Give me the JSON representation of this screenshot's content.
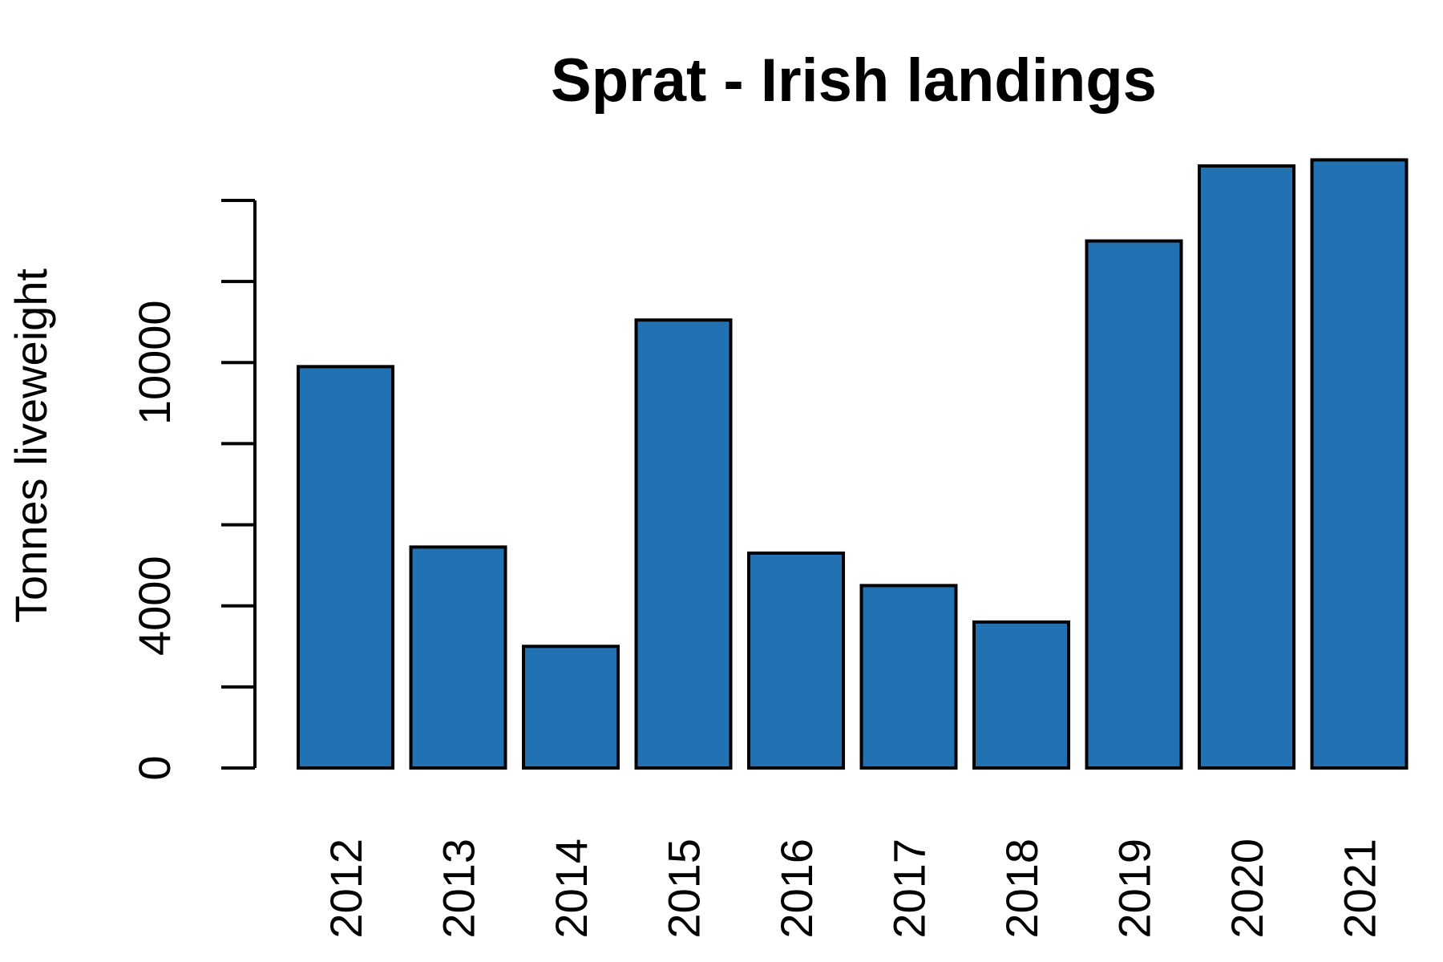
{
  "chart_data": {
    "type": "bar",
    "title": "Sprat - Irish landings",
    "xlabel": "",
    "ylabel": "Tonnes liveweight",
    "categories": [
      "2012",
      "2013",
      "2014",
      "2015",
      "2016",
      "2017",
      "2018",
      "2019",
      "2020",
      "2021"
    ],
    "values": [
      9900,
      5450,
      3000,
      11050,
      5300,
      4500,
      3600,
      13000,
      14850,
      15000
    ],
    "ylim": [
      0,
      14000
    ],
    "yticks": [
      0,
      2000,
      4000,
      6000,
      8000,
      10000,
      12000,
      14000
    ],
    "ytick_labels": [
      "0",
      "",
      "4000",
      "",
      "",
      "10000",
      "",
      ""
    ],
    "bar_color": "#2271b3",
    "grid": false,
    "legend": "none"
  }
}
